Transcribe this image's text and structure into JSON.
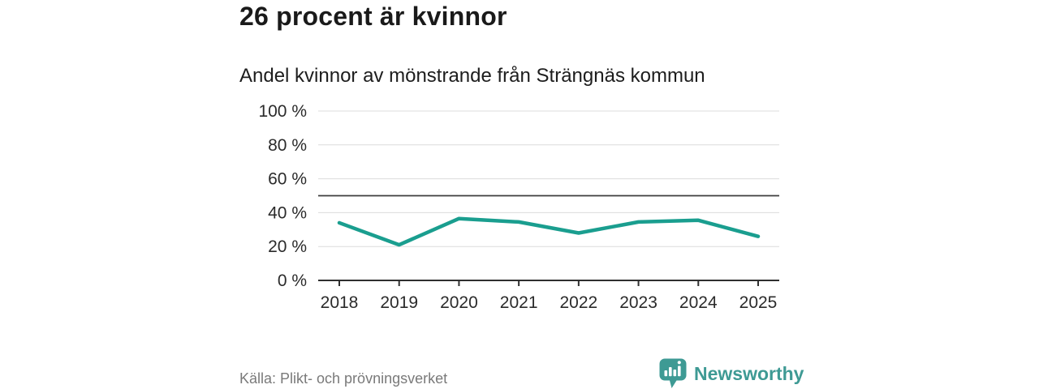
{
  "header": {
    "title": "26 procent är kvinnor",
    "subtitle": "Andel kvinnor av mönstrande från Strängnäs kommun"
  },
  "chart_data": {
    "type": "line",
    "title": "Andel kvinnor av mönstrande från Strängnäs kommun",
    "x": [
      "2018",
      "2019",
      "2020",
      "2021",
      "2022",
      "2023",
      "2024",
      "2025"
    ],
    "series": [
      {
        "name": "Andel kvinnor",
        "values": [
          34,
          21,
          36.5,
          34.5,
          28,
          34.5,
          35.5,
          26
        ]
      }
    ],
    "ylim": [
      0,
      100
    ],
    "yticks": [
      0,
      20,
      40,
      60,
      80,
      100
    ],
    "ytick_suffix": " %",
    "reference_line": 50,
    "grid": true,
    "legend": "none"
  },
  "footer": {
    "source": "Källa: Plikt- och prövningsverket",
    "brand": "Newsworthy"
  },
  "colors": {
    "line": "#1a9e8f",
    "reference_line": "#3d3d3d",
    "grid": "#dcdcdc",
    "axis": "#2f2f2f",
    "tick_text": "#2b2b2b",
    "brand_teal": "#3e9a94",
    "title_text": "#1a1a1a",
    "muted_text": "#7a7a7a"
  }
}
